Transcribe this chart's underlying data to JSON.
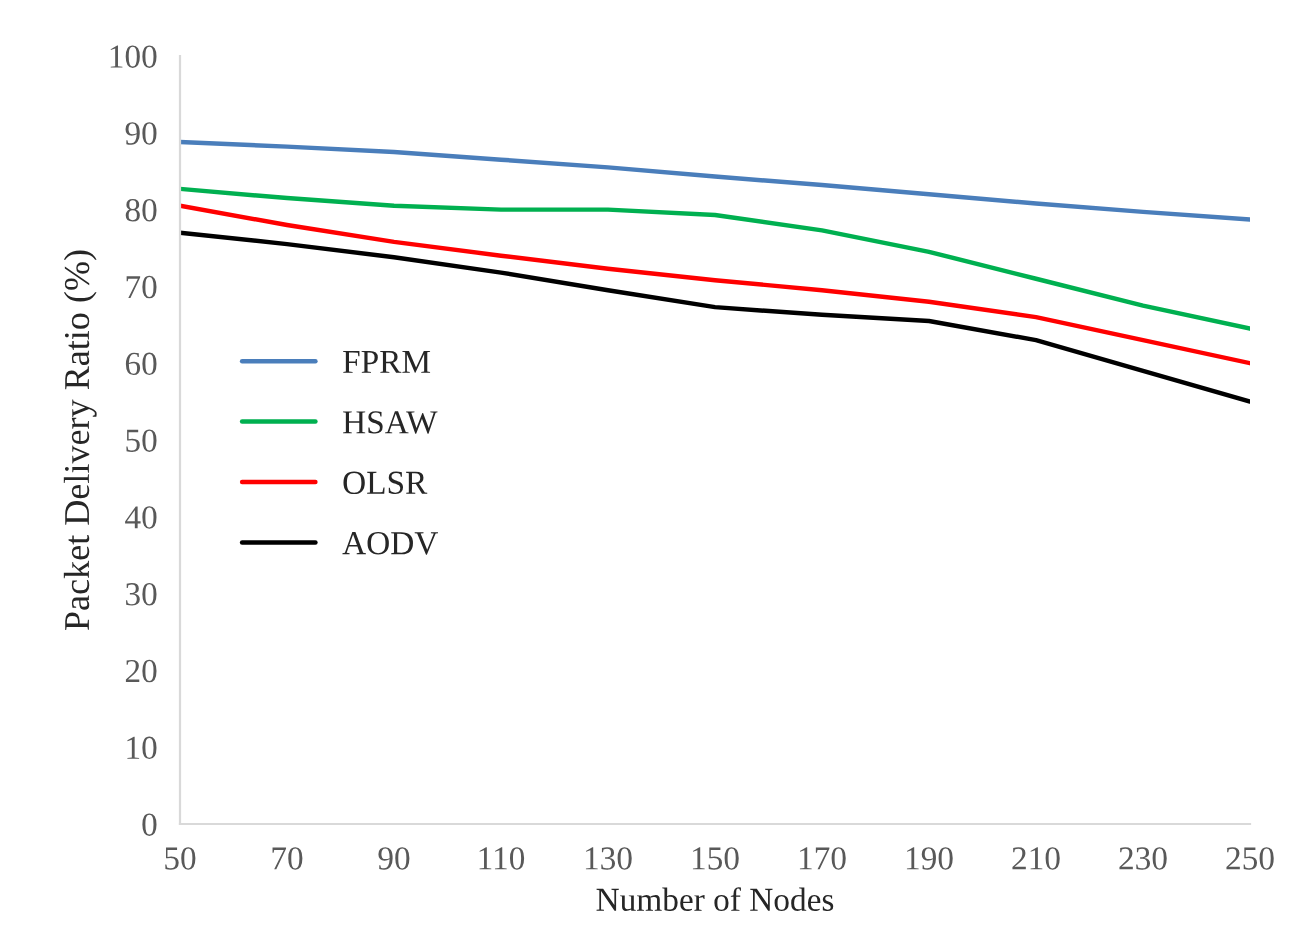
{
  "chart_data": {
    "type": "line",
    "xlabel": "Number of Nodes",
    "ylabel": "Packet Delivery Ratio (%)",
    "x": [
      50,
      70,
      90,
      110,
      130,
      150,
      170,
      190,
      210,
      230,
      250
    ],
    "series": [
      {
        "name": "FPRM",
        "color": "#4a7ebb",
        "values": [
          88.8,
          88.2,
          87.5,
          86.5,
          85.5,
          84.3,
          83.2,
          82,
          80.8,
          79.7,
          78.7
        ]
      },
      {
        "name": "HSAW",
        "color": "#00b050",
        "values": [
          82.7,
          81.5,
          80.5,
          80,
          80,
          79.3,
          77.3,
          74.5,
          71,
          67.5,
          64.5
        ]
      },
      {
        "name": "OLSR",
        "color": "#ff0000",
        "values": [
          80.5,
          78,
          75.8,
          74,
          72.3,
          70.8,
          69.5,
          68,
          66,
          63,
          60
        ]
      },
      {
        "name": "AODV",
        "color": "#000000",
        "values": [
          77,
          75.5,
          73.8,
          71.8,
          69.5,
          67.3,
          66.3,
          65.5,
          63,
          59,
          55
        ]
      }
    ],
    "xlim": [
      50,
      250
    ],
    "xticks": [
      50,
      70,
      90,
      110,
      130,
      150,
      170,
      190,
      210,
      230,
      250
    ],
    "ylim": [
      0,
      100
    ],
    "yticks": [
      0,
      10,
      20,
      30,
      40,
      50,
      60,
      70,
      80,
      90,
      100
    ],
    "grid": false,
    "legend": "center left",
    "marker": "none",
    "line_style": "solid"
  }
}
